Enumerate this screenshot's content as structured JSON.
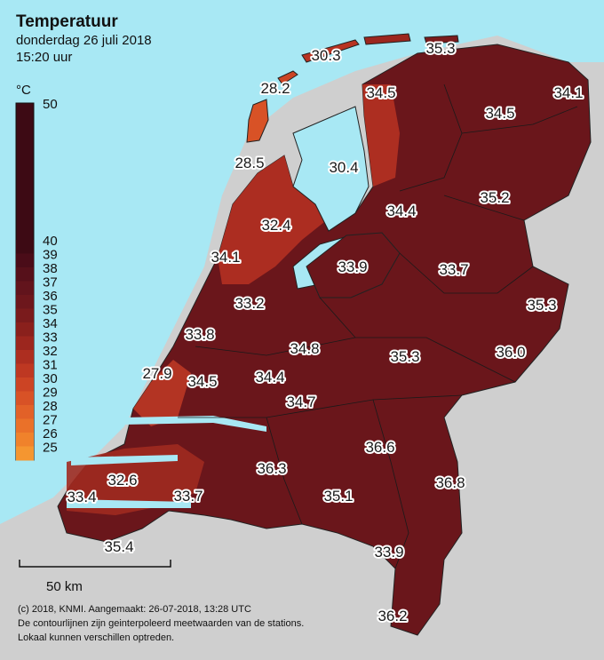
{
  "header": {
    "title": "Temperatuur",
    "date": "donderdag 26 juli 2018",
    "time": "15:20 uur"
  },
  "legend": {
    "unit": "°C",
    "top_value": "50",
    "labels": [
      "40",
      "39",
      "38",
      "37",
      "36",
      "35",
      "34",
      "33",
      "32",
      "31",
      "30",
      "29",
      "28",
      "27",
      "26",
      "25"
    ],
    "colors": [
      "#3d0a14",
      "#4a0c18",
      "#56101a",
      "#62141c",
      "#6d171c",
      "#7a1b1c",
      "#8a201c",
      "#9c261e",
      "#ad2e20",
      "#be3822",
      "#cc4424",
      "#d85226",
      "#e26128",
      "#ea7129",
      "#f0822b",
      "#f59630"
    ]
  },
  "colors": {
    "sea": "#a8e8f4",
    "land_outside": "#cfcfcf",
    "hot": "#6d171c"
  },
  "stations": [
    {
      "value": "30.3"
    },
    {
      "value": "35.3"
    },
    {
      "value": "28.2"
    },
    {
      "value": "34.5"
    },
    {
      "value": "34.1"
    },
    {
      "value": "34.5"
    },
    {
      "value": "28.5"
    },
    {
      "value": "30.4"
    },
    {
      "value": "34.4"
    },
    {
      "value": "35.2"
    },
    {
      "value": "32.4"
    },
    {
      "value": "34.1"
    },
    {
      "value": "33.9"
    },
    {
      "value": "33.7"
    },
    {
      "value": "33.2"
    },
    {
      "value": "35.3"
    },
    {
      "value": "33.8"
    },
    {
      "value": "34.8"
    },
    {
      "value": "35.3"
    },
    {
      "value": "36.0"
    },
    {
      "value": "27.9"
    },
    {
      "value": "34.5"
    },
    {
      "value": "34.4"
    },
    {
      "value": "34.7"
    },
    {
      "value": "36.6"
    },
    {
      "value": "36.3"
    },
    {
      "value": "32.6"
    },
    {
      "value": "36.8"
    },
    {
      "value": "33.4"
    },
    {
      "value": "33.7"
    },
    {
      "value": "35.1"
    },
    {
      "value": "35.4"
    },
    {
      "value": "33.9"
    },
    {
      "value": "36.2"
    }
  ],
  "scale": {
    "label": "50 km"
  },
  "footer": {
    "line1": "(c) 2018, KNMI. Aangemaakt: 26-07-2018, 13:28 UTC",
    "line2": "De contourlijnen zijn geinterpoleerd meetwaarden van de stations.",
    "line3": "Lokaal kunnen verschillen optreden."
  }
}
